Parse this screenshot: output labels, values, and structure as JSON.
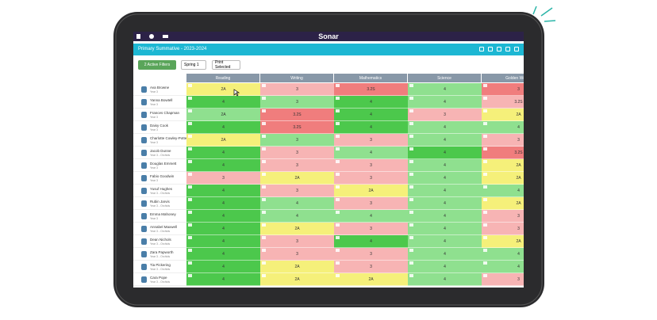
{
  "app": {
    "name": "Sonar"
  },
  "header": {
    "title": "Primary Summative - 2023-2024"
  },
  "filters": {
    "active": "2 Active Filters",
    "term": "Spring 1",
    "print": "Print Selected"
  },
  "table": {
    "columns": [
      "Reading",
      "Writing",
      "Mathematics",
      "Science",
      "Golden Words"
    ],
    "palette": {
      "g": "#4cc84c",
      "l": "#8fe08f",
      "y": "#f5f07a",
      "p": "#f7b4b4",
      "r": "#f07d7d"
    },
    "rows": [
      {
        "name": "Ava Browne",
        "group": "Year 3",
        "cells": [
          "2A",
          "3",
          "3.2S",
          "4",
          "3"
        ],
        "colors": [
          "y",
          "p",
          "r",
          "l",
          "r"
        ]
      },
      {
        "name": "Yanna Bowtell",
        "group": "Year 3",
        "cells": [
          "4",
          "3",
          "4",
          "4",
          "3.2S"
        ],
        "colors": [
          "g",
          "l",
          "g",
          "l",
          "p"
        ]
      },
      {
        "name": "Frances Chapman",
        "group": "Year 3",
        "cells": [
          "2A",
          "3.2S",
          "4",
          "3",
          "2A"
        ],
        "colors": [
          "l",
          "r",
          "g",
          "p",
          "y"
        ]
      },
      {
        "name": "Daisy Cook",
        "group": "Year 3",
        "cells": [
          "4",
          "3.2S",
          "4",
          "4",
          "4"
        ],
        "colors": [
          "g",
          "r",
          "g",
          "l",
          "l"
        ]
      },
      {
        "name": "Charlotte Cowley-Potter",
        "group": "Year 3",
        "cells": [
          "2A",
          "3",
          "3",
          "4",
          "3"
        ],
        "colors": [
          "y",
          "l",
          "p",
          "l",
          "p"
        ]
      },
      {
        "name": "Jacob Dunne",
        "group": "Year 3 - Orchids",
        "cells": [
          "4",
          "3",
          "4",
          "4",
          "3.2S"
        ],
        "colors": [
          "g",
          "p",
          "l",
          "g",
          "r"
        ]
      },
      {
        "name": "Douglas Emmett",
        "group": "Year 3",
        "cells": [
          "4",
          "3",
          "3",
          "4",
          "2A"
        ],
        "colors": [
          "g",
          "p",
          "p",
          "l",
          "y"
        ]
      },
      {
        "name": "Fabio Goodwin",
        "group": "Year 3",
        "cells": [
          "3",
          "2A",
          "3",
          "4",
          "2A"
        ],
        "colors": [
          "p",
          "y",
          "p",
          "l",
          "y"
        ]
      },
      {
        "name": "Yusuf Hughes",
        "group": "Year 3 - Orchids",
        "cells": [
          "4",
          "3",
          "2A",
          "4",
          "4"
        ],
        "colors": [
          "g",
          "p",
          "y",
          "l",
          "l"
        ]
      },
      {
        "name": "Rubin Jarvis",
        "group": "Year 3 - Orchids",
        "cells": [
          "4",
          "4",
          "3",
          "4",
          "2A"
        ],
        "colors": [
          "g",
          "l",
          "p",
          "l",
          "y"
        ]
      },
      {
        "name": "Emma Mahoney",
        "group": "Year 3",
        "cells": [
          "4",
          "4",
          "4",
          "4",
          "3"
        ],
        "colors": [
          "g",
          "l",
          "l",
          "l",
          "p"
        ]
      },
      {
        "name": "Annabel Maxwell",
        "group": "Year 3 - Orchids",
        "cells": [
          "4",
          "2A",
          "3",
          "4",
          "3"
        ],
        "colors": [
          "g",
          "y",
          "p",
          "l",
          "p"
        ]
      },
      {
        "name": "Dean Nichols",
        "group": "Year 3 - Orchids",
        "cells": [
          "4",
          "3",
          "4",
          "4",
          "2A"
        ],
        "colors": [
          "g",
          "p",
          "g",
          "l",
          "y"
        ]
      },
      {
        "name": "Zara Papworth",
        "group": "Year 3 - Orchids",
        "cells": [
          "4",
          "3",
          "3",
          "4",
          "4"
        ],
        "colors": [
          "g",
          "p",
          "p",
          "l",
          "l"
        ]
      },
      {
        "name": "Tia Pickering",
        "group": "Year 3 - Orchids",
        "cells": [
          "4",
          "2A",
          "3",
          "4",
          "4"
        ],
        "colors": [
          "g",
          "y",
          "p",
          "l",
          "l"
        ]
      },
      {
        "name": "Cara Pope",
        "group": "Year 3 - Orchids",
        "cells": [
          "4",
          "2A",
          "2A",
          "4",
          "3"
        ],
        "colors": [
          "g",
          "y",
          "y",
          "l",
          "p"
        ]
      }
    ]
  }
}
